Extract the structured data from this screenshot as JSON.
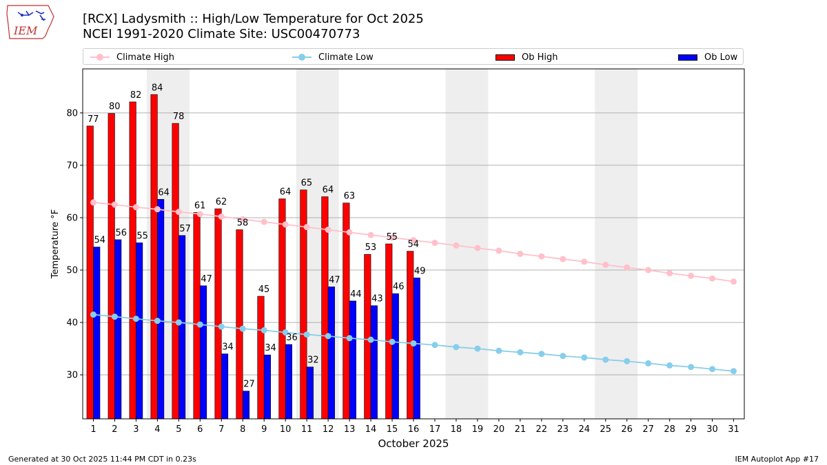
{
  "header": {
    "title_line1": "[RCX] Ladysmith :: High/Low Temperature for Oct 2025",
    "title_line2": "NCEI 1991-2020 Climate Site: USC00470773",
    "logo_text": "IEM"
  },
  "footer": {
    "generated": "Generated at 30 Oct 2025 11:44 PM CDT in 0.23s",
    "app": "IEM Autoplot App #17"
  },
  "colors": {
    "ob_high": "#ff0000",
    "ob_low": "#0000ff",
    "climate_high": "#ffc0cb",
    "climate_low": "#87ceeb",
    "weekend_shade": "#eeeeee",
    "grid": "#b0b0b0"
  },
  "chart_data": {
    "type": "bar",
    "title": "[RCX] Ladysmith :: High/Low Temperature for Oct 2025",
    "subtitle": "NCEI 1991-2020 Climate Site: USC00470773",
    "xlabel": "October 2025",
    "ylabel": "Temperature °F",
    "ylim": [
      21.6,
      88.4
    ],
    "xlim": [
      0.5,
      31.5
    ],
    "yticks": [
      30,
      40,
      50,
      60,
      70,
      80
    ],
    "grid": "horizontal",
    "legend_placement": "top",
    "legend": [
      "Climate High",
      "Climate Low",
      "Ob High",
      "Ob Low"
    ],
    "days": [
      1,
      2,
      3,
      4,
      5,
      6,
      7,
      8,
      9,
      10,
      11,
      12,
      13,
      14,
      15,
      16,
      17,
      18,
      19,
      20,
      21,
      22,
      23,
      24,
      25,
      26,
      27,
      28,
      29,
      30,
      31
    ],
    "shaded_day_ranges": [
      [
        4,
        5
      ],
      [
        11,
        12
      ],
      [
        18,
        19
      ],
      [
        25,
        26
      ]
    ],
    "series": [
      {
        "name": "Ob High",
        "kind": "bar",
        "values": [
          77.5,
          79.9,
          82.1,
          83.5,
          78.0,
          61.0,
          61.7,
          57.7,
          45.0,
          63.6,
          65.3,
          64.0,
          62.8,
          53.0,
          55.0,
          53.6
        ],
        "labels": [
          "77",
          "80",
          "82",
          "84",
          "78",
          "61",
          "62",
          "58",
          "45",
          "64",
          "65",
          "64",
          "63",
          "53",
          "55",
          "54"
        ]
      },
      {
        "name": "Ob Low",
        "kind": "bar",
        "values": [
          54.4,
          55.8,
          55.2,
          63.5,
          56.6,
          47.0,
          34.0,
          26.9,
          33.8,
          35.8,
          31.5,
          46.8,
          44.1,
          43.2,
          45.5,
          48.5
        ],
        "labels": [
          "54",
          "56",
          "55",
          "64",
          "57",
          "47",
          "34",
          "27",
          "34",
          "36",
          "32",
          "47",
          "44",
          "43",
          "46",
          "49"
        ]
      },
      {
        "name": "Climate High",
        "kind": "line",
        "values": [
          62.9,
          62.5,
          62.0,
          61.6,
          61.1,
          60.7,
          60.2,
          59.7,
          59.2,
          58.7,
          58.2,
          57.7,
          57.2,
          56.7,
          56.2,
          55.7,
          55.2,
          54.7,
          54.2,
          53.7,
          53.1,
          52.6,
          52.1,
          51.6,
          51.0,
          50.5,
          50.0,
          49.4,
          48.9,
          48.4,
          47.8
        ]
      },
      {
        "name": "Climate Low",
        "kind": "line",
        "values": [
          41.5,
          41.1,
          40.7,
          40.3,
          40.0,
          39.6,
          39.2,
          38.8,
          38.5,
          38.1,
          37.7,
          37.4,
          37.0,
          36.7,
          36.3,
          36.0,
          35.7,
          35.3,
          35.0,
          34.6,
          34.3,
          34.0,
          33.6,
          33.3,
          32.9,
          32.6,
          32.2,
          31.8,
          31.5,
          31.1,
          30.7
        ]
      }
    ]
  }
}
